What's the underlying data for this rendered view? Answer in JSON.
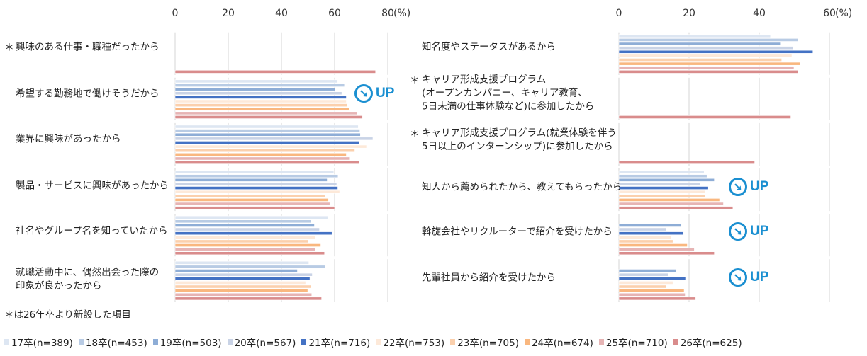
{
  "chart_data": [
    {
      "type": "bar",
      "orientation": "horizontal",
      "xlim": [
        0,
        80
      ],
      "ticks": [
        "0",
        "20",
        "40",
        "60",
        "80"
      ],
      "unit": "(%)",
      "grid": true,
      "categories": [
        {
          "label": "興味のある仕事・職種だったから",
          "new": true
        },
        {
          "label": "希望する勤務地で働けそうだから",
          "new": false,
          "badge": "UP"
        },
        {
          "label": "業界に興味があったから",
          "new": false
        },
        {
          "label": "製品・サービスに興味があったから",
          "new": false
        },
        {
          "label": "社名やグループ名を知っていたから",
          "new": false
        },
        {
          "label": "就職活動中に、偶然出会った際の\n印象が良かったから",
          "new": false
        }
      ],
      "values": [
        [
          null,
          null,
          null,
          null,
          null,
          null,
          null,
          null,
          null,
          75.4
        ],
        [
          61.1,
          63.7,
          60.3,
          62.7,
          64.4,
          64.4,
          64.7,
          65.5,
          68.4,
          70.5
        ],
        [
          68.9,
          69.5,
          69.7,
          74.4,
          69.4,
          72.0,
          67.6,
          64.4,
          65.8,
          69.2
        ],
        [
          59.7,
          61.3,
          57.2,
          60.8,
          61.2,
          61.9,
          56.6,
          57.7,
          58.2,
          60.0
        ],
        [
          57.4,
          51.2,
          52.4,
          54.3,
          59.0,
          52.7,
          50.1,
          54.8,
          52.7,
          56.2
        ],
        [
          50.3,
          56.4,
          46.0,
          51.6,
          50.7,
          49.1,
          51.2,
          49.9,
          51.4,
          55.1
        ]
      ]
    },
    {
      "type": "bar",
      "orientation": "horizontal",
      "xlim": [
        0,
        60
      ],
      "ticks": [
        "0",
        "20",
        "40",
        "60"
      ],
      "unit": "(%)",
      "grid": true,
      "categories": [
        {
          "label": "知名度やステータスがあるから",
          "new": false
        },
        {
          "label": "キャリア形成支援プログラム\n(オープンカンパニー、キャリア教育、\n 5日未満の仕事体験など)に参加したから",
          "new": true
        },
        {
          "label": "キャリア形成支援プログラム(就業体験を伴う\n 5日以上のインターンシップ)に参加したから",
          "new": true
        },
        {
          "label": "知人から薦められたから、教えてもらったから",
          "new": false,
          "badge": "UP"
        },
        {
          "label": "斡旋会社やリクルーターで紹介を受けたから",
          "new": false,
          "badge": "UP"
        },
        {
          "label": "先輩社員から紹介を受けたから",
          "new": false,
          "badge": "UP"
        }
      ],
      "values": [
        [
          43.2,
          51.0,
          46.0,
          49.6,
          55.3,
          49.3,
          46.4,
          51.7,
          49.9,
          51.1
        ],
        [
          null,
          null,
          null,
          null,
          null,
          null,
          null,
          null,
          null,
          49.0
        ],
        [
          null,
          null,
          null,
          null,
          null,
          null,
          null,
          null,
          null,
          38.7
        ],
        [
          24.3,
          25.1,
          27.2,
          23.1,
          25.5,
          24.5,
          24.7,
          28.7,
          29.8,
          32.5
        ],
        [
          null,
          null,
          17.8,
          13.6,
          18.4,
          15.0,
          15.4,
          19.5,
          21.5,
          27.2
        ],
        [
          null,
          null,
          16.4,
          14.0,
          19.0,
          15.4,
          13.4,
          18.6,
          18.9,
          21.9
        ]
      ]
    }
  ],
  "series": [
    {
      "name": "17卒(n=389)",
      "color": "#dde6f2"
    },
    {
      "name": "18卒(n=453)",
      "color": "#b8cbe4"
    },
    {
      "name": "19卒(n=503)",
      "color": "#8eadd6"
    },
    {
      "name": "20卒(n=567)",
      "color": "#c9d3e6"
    },
    {
      "name": "21卒(n=716)",
      "color": "#4472c4"
    },
    {
      "name": "22卒(n=753)",
      "color": "#fde9d9"
    },
    {
      "name": "23卒(n=705)",
      "color": "#fbd0ad"
    },
    {
      "name": "24卒(n=674)",
      "color": "#f9b77f"
    },
    {
      "name": "25卒(n=710)",
      "color": "#e6b4b4"
    },
    {
      "name": "26卒(n=625)",
      "color": "#d98c8c"
    }
  ],
  "new_marker": "＊",
  "footnote": "＊は26年卒より新設した項目",
  "badge_text": "UP",
  "badge_icon": "arrow-down-right-circle-icon",
  "accent_color": "#1a8fd1"
}
